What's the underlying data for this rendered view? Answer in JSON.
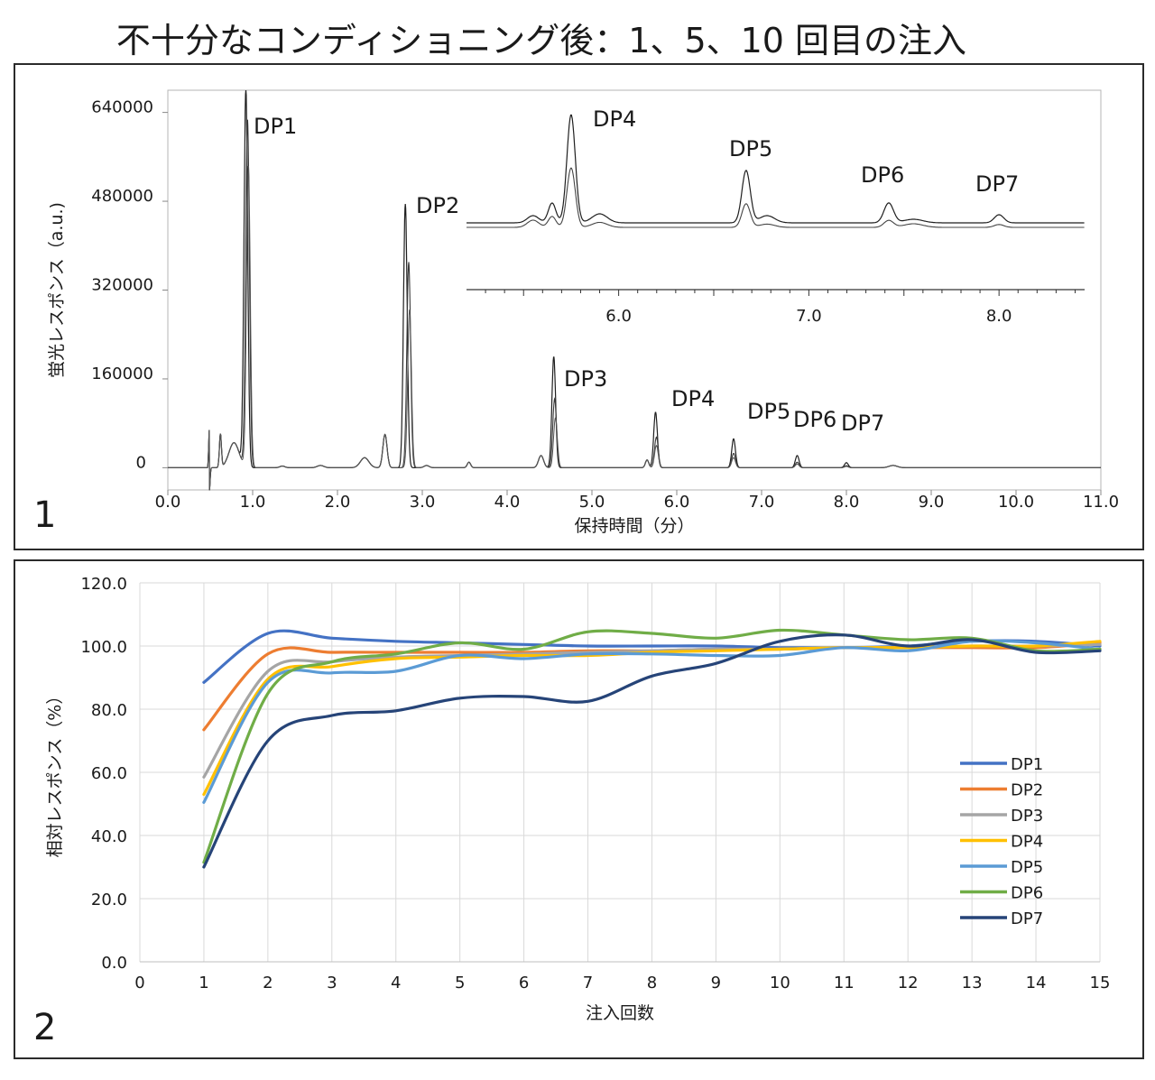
{
  "title": "不十分なコンディショニング後：1、5、10 回目の注入",
  "panel1_number": "1",
  "panel2_number": "2",
  "chart_data": [
    {
      "type": "line",
      "xlabel": "保持時間（分）",
      "ylabel": "蛍光レスポンス（a.u.)",
      "xlim": [
        0,
        11
      ],
      "ylim": [
        -40000,
        680000
      ],
      "x_ticks": [
        "0.0",
        "1.0",
        "2.0",
        "3.0",
        "4.0",
        "5.0",
        "6.0",
        "7.0",
        "8.0",
        "9.0",
        "10.0",
        "11.0"
      ],
      "y_ticks": [
        "0",
        "160000",
        "320000",
        "480000",
        "640000"
      ],
      "peaks": [
        {
          "label": "DP1",
          "rt": 0.92,
          "height": 680000
        },
        {
          "label": "DP2",
          "rt": 2.8,
          "height": 475000
        },
        {
          "label": "DP3",
          "rt": 4.55,
          "height": 200000
        },
        {
          "label": "DP4",
          "rt": 5.75,
          "height": 100000
        },
        {
          "label": "DP5",
          "rt": 6.67,
          "height": 52000
        },
        {
          "label": "DP6",
          "rt": 7.42,
          "height": 22000
        },
        {
          "label": "DP7",
          "rt": 8.0,
          "height": 9000
        }
      ],
      "inset": {
        "xlim": [
          5.2,
          8.45
        ],
        "x_ticks": [
          "6.0",
          "7.0",
          "8.0"
        ],
        "peak_labels": [
          "DP4",
          "DP5",
          "DP6",
          "DP7"
        ]
      }
    },
    {
      "type": "line",
      "xlabel": "注入回数",
      "ylabel": "相対レスポンス（%）",
      "xlim": [
        0,
        15
      ],
      "ylim": [
        0,
        120
      ],
      "x_ticks": [
        "0",
        "1",
        "2",
        "3",
        "4",
        "5",
        "6",
        "7",
        "8",
        "9",
        "10",
        "11",
        "12",
        "13",
        "14",
        "15"
      ],
      "y_ticks": [
        "0.0",
        "20.0",
        "40.0",
        "60.0",
        "80.0",
        "100.0",
        "120.0"
      ],
      "legend_position": "right",
      "x": [
        1,
        2,
        3,
        4,
        5,
        6,
        7,
        8,
        9,
        10,
        11,
        12,
        13,
        14,
        15
      ],
      "series": [
        {
          "name": "DP1",
          "color": "#4472C4",
          "values": [
            88.5,
            104,
            102.5,
            101.5,
            101,
            100.5,
            100,
            100,
            100,
            99.5,
            99.5,
            100,
            101.5,
            101.5,
            100
          ]
        },
        {
          "name": "DP2",
          "color": "#ED7D31",
          "values": [
            73.5,
            97.5,
            98,
            98,
            98,
            98,
            98.5,
            98.5,
            99,
            99,
            99.5,
            99.5,
            99.5,
            99.5,
            101
          ]
        },
        {
          "name": "DP3",
          "color": "#A5A5A5",
          "values": [
            58.5,
            92,
            95,
            96.5,
            97,
            97.5,
            98,
            98.5,
            99,
            99,
            99.5,
            99.5,
            100,
            100,
            100.5
          ]
        },
        {
          "name": "DP4",
          "color": "#FFC000",
          "values": [
            53,
            89.5,
            93.5,
            96,
            96.5,
            97,
            97,
            98,
            98.5,
            99,
            99.5,
            99.5,
            100,
            100,
            101.5
          ]
        },
        {
          "name": "DP5",
          "color": "#5B9BD5",
          "values": [
            50.5,
            88.5,
            91.5,
            92,
            97,
            96,
            97.5,
            97.5,
            97,
            97,
            99.5,
            98.5,
            101.5,
            101,
            99
          ]
        },
        {
          "name": "DP6",
          "color": "#70AD47",
          "values": [
            31.5,
            85,
            95,
            97.5,
            101,
            99,
            104.5,
            104,
            102.5,
            105,
            103.5,
            102,
            102.5,
            98.5,
            99
          ]
        },
        {
          "name": "DP7",
          "color": "#264478",
          "values": [
            30,
            70,
            78,
            79.5,
            83.5,
            84,
            82.5,
            90.5,
            94.5,
            101.5,
            103.5,
            100,
            102,
            98,
            98.5
          ]
        }
      ]
    }
  ]
}
